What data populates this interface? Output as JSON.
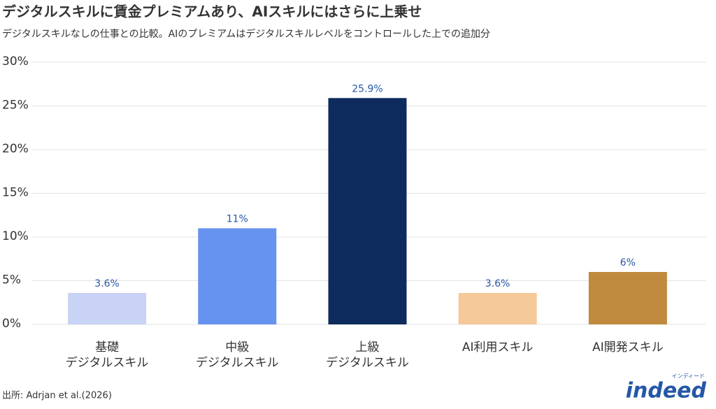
{
  "chart_data": {
    "type": "bar",
    "title": "デジタルスキルに賃金プレミアムあり、AIスキルにはさらに上乗せ",
    "subtitle": "デジタルスキルなしの仕事との比較。AIのプレミアムはデジタルスキルレベルをコントロールした上での追加分",
    "categories": [
      [
        "基礎",
        "デジタルスキル"
      ],
      [
        "中級",
        "デジタルスキル"
      ],
      [
        "上級",
        "デジタルスキル"
      ],
      [
        "AI利用スキル"
      ],
      [
        "AI開発スキル"
      ]
    ],
    "values": [
      3.6,
      11,
      25.9,
      3.6,
      6
    ],
    "value_labels": [
      "3.6%",
      "11%",
      "25.9%",
      "3.6%",
      "6%"
    ],
    "colors": [
      "#c9d3f5",
      "#6693f0",
      "#0d2b5c",
      "#f5c99a",
      "#c08a3e"
    ],
    "ylim": [
      0,
      30
    ],
    "yticks": [
      {
        "value": 0,
        "label": "0%"
      },
      {
        "value": 5,
        "label": "5%"
      },
      {
        "value": 10,
        "label": "10%"
      },
      {
        "value": 15,
        "label": "15%"
      },
      {
        "value": 20,
        "label": "20%"
      },
      {
        "value": 25,
        "label": "25%"
      },
      {
        "value": 30,
        "label": "30%"
      }
    ],
    "grid": true,
    "source": "出所: Adrjan et al.(2026)",
    "logo": {
      "text": "indeed",
      "subtext": "インディード"
    }
  }
}
